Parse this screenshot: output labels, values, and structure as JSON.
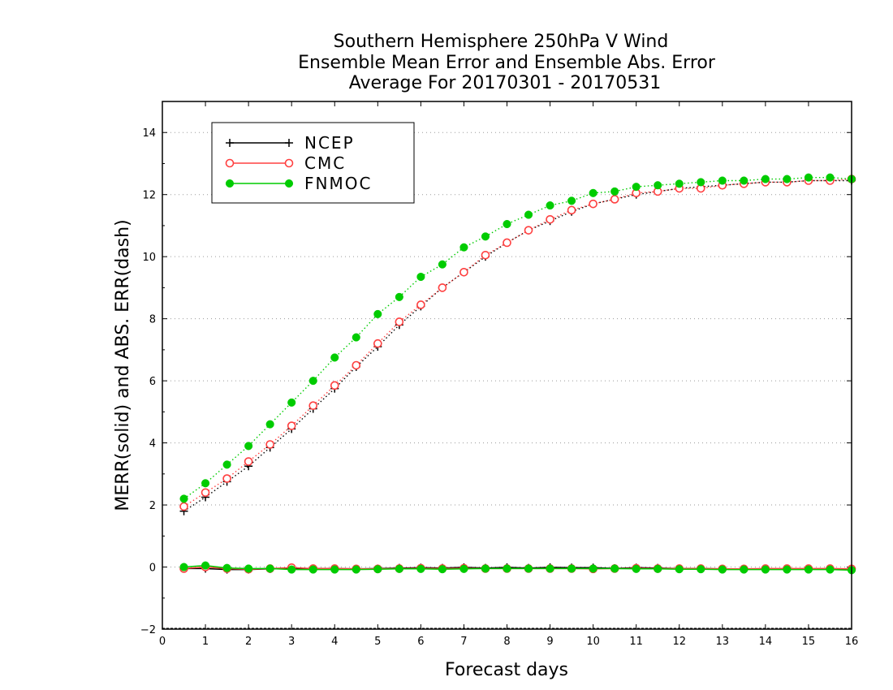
{
  "chart_data": {
    "type": "line",
    "title": [
      "Southern Hemisphere 250hPa V Wind",
      "Ensemble Mean Error and Ensemble Abs. Error",
      "Average For 20170301 - 20170531"
    ],
    "xlabel": "Forecast days",
    "ylabel": "MERR(solid) and ABS. ERR(dash)",
    "xlim": [
      0,
      16
    ],
    "ylim": [
      -2,
      15
    ],
    "xticks": [
      0,
      1,
      2,
      3,
      4,
      5,
      6,
      7,
      8,
      9,
      10,
      11,
      12,
      13,
      14,
      15,
      16
    ],
    "yticks": [
      -2,
      0,
      2,
      4,
      6,
      8,
      10,
      12,
      14
    ],
    "grid": "horizontal dotted",
    "legend_position": "top-left",
    "x": [
      0.5,
      1,
      1.5,
      2,
      2.5,
      3,
      3.5,
      4,
      4.5,
      5,
      5.5,
      6,
      6.5,
      7,
      7.5,
      8,
      8.5,
      9,
      9.5,
      10,
      10.5,
      11,
      11.5,
      12,
      12.5,
      13,
      13.5,
      14,
      14.5,
      15,
      15.5,
      16
    ],
    "series": [
      {
        "name": "NCEP",
        "color": "#000000",
        "marker": "plus",
        "abs_err": [
          1.8,
          2.25,
          2.75,
          3.25,
          3.85,
          4.45,
          5.1,
          5.75,
          6.45,
          7.1,
          7.8,
          8.4,
          9.0,
          9.5,
          10.0,
          10.45,
          10.85,
          11.15,
          11.45,
          11.7,
          11.85,
          12.0,
          12.1,
          12.2,
          12.25,
          12.3,
          12.35,
          12.4,
          12.4,
          12.45,
          12.45,
          12.45
        ],
        "mean_err": [
          -0.05,
          -0.05,
          -0.08,
          -0.08,
          -0.06,
          -0.04,
          -0.05,
          -0.05,
          -0.06,
          -0.05,
          -0.03,
          -0.02,
          -0.03,
          -0.01,
          -0.03,
          -0.01,
          -0.03,
          -0.01,
          -0.02,
          -0.02,
          -0.04,
          -0.02,
          -0.03,
          -0.05,
          -0.05,
          -0.06,
          -0.06,
          -0.06,
          -0.06,
          -0.06,
          -0.06,
          -0.07
        ]
      },
      {
        "name": "CMC",
        "color": "#ff4040",
        "marker": "open-circle",
        "abs_err": [
          1.95,
          2.4,
          2.85,
          3.4,
          3.95,
          4.55,
          5.2,
          5.85,
          6.5,
          7.2,
          7.9,
          8.45,
          9.0,
          9.5,
          10.05,
          10.45,
          10.85,
          11.2,
          11.5,
          11.7,
          11.85,
          12.05,
          12.1,
          12.2,
          12.2,
          12.3,
          12.35,
          12.4,
          12.4,
          12.45,
          12.45,
          12.5
        ],
        "mean_err": [
          -0.05,
          0.0,
          -0.05,
          -0.07,
          -0.05,
          -0.02,
          -0.05,
          -0.05,
          -0.06,
          -0.06,
          -0.05,
          -0.04,
          -0.05,
          -0.04,
          -0.05,
          -0.05,
          -0.05,
          -0.05,
          -0.05,
          -0.06,
          -0.05,
          -0.04,
          -0.05,
          -0.05,
          -0.05,
          -0.06,
          -0.06,
          -0.05,
          -0.05,
          -0.05,
          -0.05,
          -0.06
        ]
      },
      {
        "name": "FNMOC",
        "color": "#00cc00",
        "marker": "filled-circle",
        "abs_err": [
          2.2,
          2.7,
          3.3,
          3.9,
          4.6,
          5.3,
          6.0,
          6.75,
          7.4,
          8.15,
          8.7,
          9.35,
          9.75,
          10.3,
          10.65,
          11.05,
          11.35,
          11.65,
          11.8,
          12.05,
          12.1,
          12.25,
          12.3,
          12.35,
          12.4,
          12.45,
          12.45,
          12.5,
          12.5,
          12.55,
          12.55,
          12.5
        ],
        "mean_err": [
          0.0,
          0.05,
          -0.03,
          -0.05,
          -0.05,
          -0.08,
          -0.08,
          -0.08,
          -0.08,
          -0.07,
          -0.06,
          -0.06,
          -0.07,
          -0.06,
          -0.05,
          -0.05,
          -0.05,
          -0.05,
          -0.05,
          -0.05,
          -0.05,
          -0.06,
          -0.06,
          -0.07,
          -0.07,
          -0.08,
          -0.08,
          -0.08,
          -0.08,
          -0.08,
          -0.08,
          -0.1
        ]
      }
    ]
  }
}
